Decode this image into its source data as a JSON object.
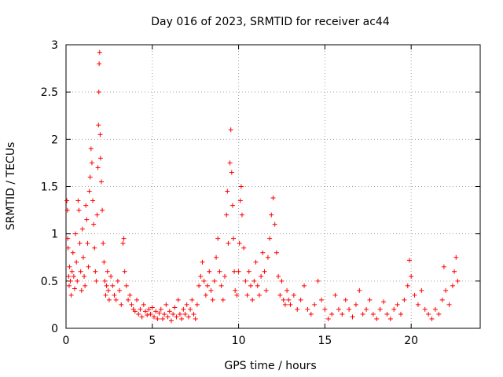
{
  "chart_data": {
    "type": "scatter",
    "title": "Day 016 of 2023, SRMTID for receiver ac44",
    "xlabel": "GPS time / hours",
    "ylabel": "SRMTID / TECUs",
    "xlim": [
      0,
      24
    ],
    "ylim": [
      0,
      3
    ],
    "xticks": [
      0,
      5,
      10,
      15,
      20
    ],
    "yticks": [
      0,
      0.5,
      1,
      1.5,
      2,
      2.5,
      3
    ],
    "ytick_labels": [
      "0",
      "0.5",
      "1",
      "1.5",
      "2",
      "2.5",
      "3"
    ],
    "grid": true,
    "marker": "+",
    "series": [
      {
        "name": "SRMTID",
        "color": "#ff0000",
        "points": [
          [
            0.05,
            1.35
          ],
          [
            0.08,
            1.25
          ],
          [
            0.1,
            0.95
          ],
          [
            0.12,
            0.85
          ],
          [
            0.15,
            0.55
          ],
          [
            0.18,
            0.45
          ],
          [
            0.2,
            0.65
          ],
          [
            0.25,
            0.5
          ],
          [
            0.3,
            0.35
          ],
          [
            0.35,
            0.6
          ],
          [
            0.4,
            0.8
          ],
          [
            0.45,
            0.55
          ],
          [
            0.5,
            0.42
          ],
          [
            0.55,
            1.0
          ],
          [
            0.6,
            0.7
          ],
          [
            0.65,
            0.5
          ],
          [
            0.7,
            1.35
          ],
          [
            0.75,
            1.25
          ],
          [
            0.8,
            0.9
          ],
          [
            0.85,
            0.6
          ],
          [
            0.9,
            0.4
          ],
          [
            0.95,
            1.05
          ],
          [
            1.0,
            0.75
          ],
          [
            1.05,
            0.55
          ],
          [
            1.1,
            0.45
          ],
          [
            1.15,
            1.3
          ],
          [
            1.2,
            1.15
          ],
          [
            1.25,
            0.9
          ],
          [
            1.3,
            0.65
          ],
          [
            1.35,
            1.45
          ],
          [
            1.4,
            1.6
          ],
          [
            1.45,
            1.9
          ],
          [
            1.5,
            1.75
          ],
          [
            1.55,
            1.35
          ],
          [
            1.6,
            1.1
          ],
          [
            1.65,
            0.85
          ],
          [
            1.7,
            0.6
          ],
          [
            1.75,
            0.5
          ],
          [
            1.8,
            1.2
          ],
          [
            1.85,
            1.7
          ],
          [
            1.88,
            2.15
          ],
          [
            1.9,
            2.5
          ],
          [
            1.92,
            2.8
          ],
          [
            1.95,
            2.92
          ],
          [
            1.98,
            2.05
          ],
          [
            2.0,
            1.8
          ],
          [
            2.05,
            1.55
          ],
          [
            2.1,
            1.25
          ],
          [
            2.15,
            0.9
          ],
          [
            2.2,
            0.7
          ],
          [
            2.25,
            0.5
          ],
          [
            2.3,
            0.35
          ],
          [
            2.35,
            0.45
          ],
          [
            2.4,
            0.6
          ],
          [
            2.45,
            0.4
          ],
          [
            2.5,
            0.3
          ],
          [
            2.6,
            0.55
          ],
          [
            2.7,
            0.45
          ],
          [
            2.8,
            0.35
          ],
          [
            2.9,
            0.3
          ],
          [
            3.0,
            0.5
          ],
          [
            3.1,
            0.4
          ],
          [
            3.2,
            0.25
          ],
          [
            3.3,
            0.9
          ],
          [
            3.35,
            0.95
          ],
          [
            3.4,
            0.6
          ],
          [
            3.5,
            0.45
          ],
          [
            3.6,
            0.3
          ],
          [
            3.7,
            0.35
          ],
          [
            3.8,
            0.25
          ],
          [
            3.9,
            0.2
          ],
          [
            4.0,
            0.18
          ],
          [
            4.1,
            0.3
          ],
          [
            4.2,
            0.15
          ],
          [
            4.3,
            0.2
          ],
          [
            4.4,
            0.12
          ],
          [
            4.5,
            0.25
          ],
          [
            4.6,
            0.18
          ],
          [
            4.7,
            0.14
          ],
          [
            4.8,
            0.2
          ],
          [
            4.9,
            0.15
          ],
          [
            5.0,
            0.22
          ],
          [
            5.1,
            0.12
          ],
          [
            5.2,
            0.18
          ],
          [
            5.3,
            0.1
          ],
          [
            5.4,
            0.16
          ],
          [
            5.5,
            0.2
          ],
          [
            5.6,
            0.1
          ],
          [
            5.7,
            0.15
          ],
          [
            5.8,
            0.25
          ],
          [
            5.9,
            0.12
          ],
          [
            6.0,
            0.18
          ],
          [
            6.1,
            0.08
          ],
          [
            6.2,
            0.15
          ],
          [
            6.3,
            0.22
          ],
          [
            6.4,
            0.12
          ],
          [
            6.5,
            0.3
          ],
          [
            6.6,
            0.15
          ],
          [
            6.7,
            0.1
          ],
          [
            6.8,
            0.2
          ],
          [
            6.9,
            0.15
          ],
          [
            7.0,
            0.25
          ],
          [
            7.1,
            0.12
          ],
          [
            7.2,
            0.2
          ],
          [
            7.3,
            0.3
          ],
          [
            7.4,
            0.15
          ],
          [
            7.5,
            0.1
          ],
          [
            7.6,
            0.25
          ],
          [
            7.7,
            0.45
          ],
          [
            7.8,
            0.55
          ],
          [
            7.9,
            0.7
          ],
          [
            8.0,
            0.5
          ],
          [
            8.1,
            0.35
          ],
          [
            8.2,
            0.45
          ],
          [
            8.3,
            0.6
          ],
          [
            8.4,
            0.4
          ],
          [
            8.5,
            0.3
          ],
          [
            8.6,
            0.5
          ],
          [
            8.7,
            0.75
          ],
          [
            8.8,
            0.95
          ],
          [
            8.9,
            0.6
          ],
          [
            9.0,
            0.45
          ],
          [
            9.1,
            0.3
          ],
          [
            9.2,
            0.55
          ],
          [
            9.3,
            1.2
          ],
          [
            9.35,
            1.45
          ],
          [
            9.4,
            0.9
          ],
          [
            9.5,
            1.75
          ],
          [
            9.55,
            2.1
          ],
          [
            9.6,
            1.65
          ],
          [
            9.65,
            1.3
          ],
          [
            9.7,
            0.95
          ],
          [
            9.75,
            0.6
          ],
          [
            9.8,
            0.4
          ],
          [
            9.9,
            0.35
          ],
          [
            10.0,
            0.6
          ],
          [
            10.05,
            0.9
          ],
          [
            10.1,
            1.35
          ],
          [
            10.15,
            1.5
          ],
          [
            10.2,
            1.2
          ],
          [
            10.3,
            0.85
          ],
          [
            10.4,
            0.5
          ],
          [
            10.5,
            0.35
          ],
          [
            10.6,
            0.6
          ],
          [
            10.7,
            0.45
          ],
          [
            10.8,
            0.3
          ],
          [
            10.9,
            0.5
          ],
          [
            11.0,
            0.7
          ],
          [
            11.1,
            0.45
          ],
          [
            11.2,
            0.35
          ],
          [
            11.3,
            0.55
          ],
          [
            11.4,
            0.8
          ],
          [
            11.5,
            0.6
          ],
          [
            11.6,
            0.4
          ],
          [
            11.7,
            0.75
          ],
          [
            11.8,
            0.95
          ],
          [
            11.9,
            1.2
          ],
          [
            12.0,
            1.38
          ],
          [
            12.1,
            1.1
          ],
          [
            12.2,
            0.8
          ],
          [
            12.3,
            0.55
          ],
          [
            12.4,
            0.35
          ],
          [
            12.5,
            0.5
          ],
          [
            12.6,
            0.3
          ],
          [
            12.7,
            0.25
          ],
          [
            12.8,
            0.4
          ],
          [
            12.9,
            0.3
          ],
          [
            13.0,
            0.25
          ],
          [
            13.2,
            0.35
          ],
          [
            13.4,
            0.2
          ],
          [
            13.6,
            0.3
          ],
          [
            13.8,
            0.45
          ],
          [
            14.0,
            0.2
          ],
          [
            14.2,
            0.15
          ],
          [
            14.4,
            0.25
          ],
          [
            14.6,
            0.5
          ],
          [
            14.8,
            0.3
          ],
          [
            15.0,
            0.2
          ],
          [
            15.2,
            0.1
          ],
          [
            15.4,
            0.15
          ],
          [
            15.6,
            0.35
          ],
          [
            15.8,
            0.2
          ],
          [
            16.0,
            0.15
          ],
          [
            16.2,
            0.3
          ],
          [
            16.4,
            0.2
          ],
          [
            16.6,
            0.12
          ],
          [
            16.8,
            0.25
          ],
          [
            17.0,
            0.4
          ],
          [
            17.2,
            0.15
          ],
          [
            17.4,
            0.2
          ],
          [
            17.6,
            0.3
          ],
          [
            17.8,
            0.15
          ],
          [
            18.0,
            0.1
          ],
          [
            18.2,
            0.2
          ],
          [
            18.4,
            0.28
          ],
          [
            18.6,
            0.15
          ],
          [
            18.8,
            0.1
          ],
          [
            19.0,
            0.2
          ],
          [
            19.2,
            0.25
          ],
          [
            19.4,
            0.15
          ],
          [
            19.6,
            0.3
          ],
          [
            19.8,
            0.45
          ],
          [
            19.9,
            0.72
          ],
          [
            20.0,
            0.55
          ],
          [
            20.2,
            0.35
          ],
          [
            20.4,
            0.25
          ],
          [
            20.6,
            0.4
          ],
          [
            20.8,
            0.2
          ],
          [
            21.0,
            0.15
          ],
          [
            21.2,
            0.1
          ],
          [
            21.4,
            0.2
          ],
          [
            21.6,
            0.15
          ],
          [
            21.8,
            0.3
          ],
          [
            21.9,
            0.65
          ],
          [
            22.0,
            0.4
          ],
          [
            22.2,
            0.25
          ],
          [
            22.4,
            0.45
          ],
          [
            22.5,
            0.6
          ],
          [
            22.6,
            0.75
          ],
          [
            22.7,
            0.5
          ]
        ]
      }
    ]
  }
}
